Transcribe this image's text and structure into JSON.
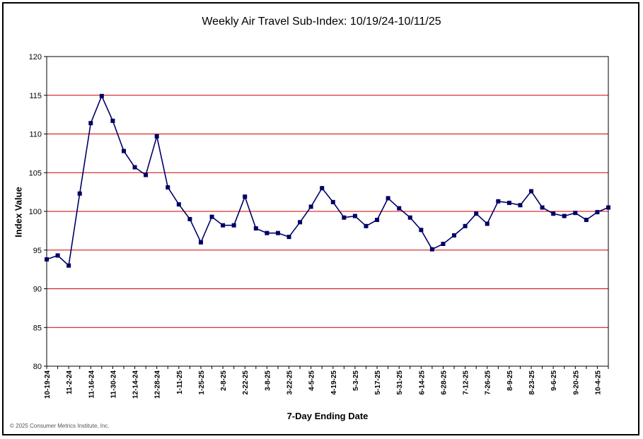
{
  "chart_data": {
    "type": "line",
    "title": "Weekly Air Travel Sub-Index: 10/19/24-10/11/25",
    "xlabel": "7-Day Ending Date",
    "ylabel": "Index Value",
    "ylim": [
      80,
      120
    ],
    "yticks": [
      80,
      85,
      90,
      95,
      100,
      105,
      110,
      115,
      120
    ],
    "grid": "horizontal",
    "grid_color": "#cc0000",
    "line_color": "#000066",
    "x_tick_labels": [
      "10-19-24",
      "11-2-24",
      "11-16-24",
      "11-30-24",
      "12-14-24",
      "12-28-24",
      "1-11-25",
      "1-25-25",
      "2-8-25",
      "2-22-25",
      "3-8-25",
      "3-22-25",
      "4-5-25",
      "4-19-25",
      "5-3-25",
      "5-17-25",
      "5-31-25",
      "6-14-25",
      "6-28-25",
      "7-12-25",
      "7-26-25",
      "8-9-25",
      "8-23-25",
      "9-6-25",
      "9-20-25",
      "10-4-25"
    ],
    "x": [
      "10-19-24",
      "10-26-24",
      "11-2-24",
      "11-9-24",
      "11-16-24",
      "11-23-24",
      "11-30-24",
      "12-7-24",
      "12-14-24",
      "12-21-24",
      "12-28-24",
      "1-4-25",
      "1-11-25",
      "1-18-25",
      "1-25-25",
      "2-1-25",
      "2-8-25",
      "2-15-25",
      "2-22-25",
      "3-1-25",
      "3-8-25",
      "3-15-25",
      "3-22-25",
      "3-29-25",
      "4-5-25",
      "4-12-25",
      "4-19-25",
      "4-26-25",
      "5-3-25",
      "5-10-25",
      "5-17-25",
      "5-24-25",
      "5-31-25",
      "6-7-25",
      "6-14-25",
      "6-21-25",
      "6-28-25",
      "7-5-25",
      "7-12-25",
      "7-19-25",
      "7-26-25",
      "8-2-25",
      "8-9-25",
      "8-16-25",
      "8-23-25",
      "8-30-25",
      "9-6-25",
      "9-13-25",
      "9-20-25",
      "9-27-25",
      "10-4-25",
      "10-11-25"
    ],
    "values": [
      93.8,
      94.3,
      93.0,
      102.3,
      111.4,
      114.9,
      111.7,
      107.8,
      105.7,
      104.7,
      109.7,
      103.1,
      100.9,
      99.0,
      96.0,
      99.3,
      98.2,
      98.2,
      101.9,
      97.8,
      97.2,
      97.2,
      96.7,
      98.6,
      100.6,
      103.0,
      101.2,
      99.2,
      99.4,
      98.1,
      98.9,
      101.7,
      100.4,
      99.2,
      97.6,
      95.1,
      95.8,
      96.9,
      98.1,
      99.7,
      98.4,
      101.3,
      101.1,
      100.8,
      102.6,
      100.5,
      99.7,
      99.4,
      99.8,
      98.9,
      99.9,
      100.5
    ]
  },
  "copyright": "© 2025 Consumer Metrics Institute, Inc."
}
